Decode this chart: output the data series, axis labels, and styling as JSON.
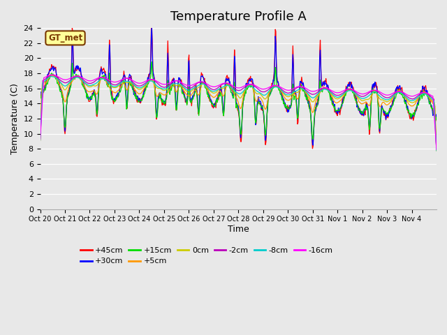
{
  "title": "Temperature Profile A",
  "xlabel": "Time",
  "ylabel": "Temperature (C)",
  "ylim": [
    0,
    24
  ],
  "yticks": [
    0,
    2,
    4,
    6,
    8,
    10,
    12,
    14,
    16,
    18,
    20,
    22,
    24
  ],
  "x_labels": [
    "Oct 20",
    "Oct 21",
    "Oct 22",
    "Oct 23",
    "Oct 24",
    "Oct 25",
    "Oct 26",
    "Oct 27",
    "Oct 28",
    "Oct 29",
    "Oct 30",
    "Oct 31",
    "Nov 1",
    "Nov 2",
    "Nov 3",
    "Nov 4"
  ],
  "annotation": "GT_met",
  "series_colors": {
    "+45cm": "#ff0000",
    "+30cm": "#0000ff",
    "+15cm": "#00dd00",
    "+5cm": "#ff9900",
    "0cm": "#cccc00",
    "-2cm": "#bb00bb",
    "-8cm": "#00cccc",
    "-16cm": "#ff00ff"
  },
  "series_order": [
    "+45cm",
    "+30cm",
    "+15cm",
    "+5cm",
    "0cm",
    "-2cm",
    "-8cm",
    "-16cm"
  ],
  "plot_bg_color": "#e8e8e8",
  "title_fontsize": 13,
  "axis_label_fontsize": 9
}
